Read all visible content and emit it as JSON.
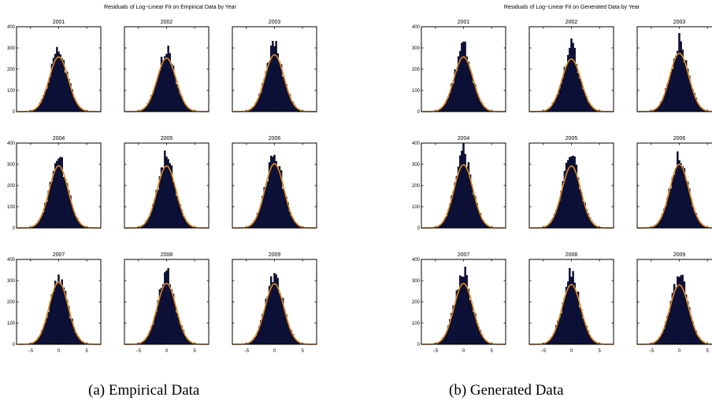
{
  "figure": {
    "caption_a": "(a)  Empirical Data",
    "caption_b": "(b)  Generated Data"
  },
  "colors": {
    "bar": "#0d1240",
    "bar_edge": "#000000",
    "curve": "#e08a1e",
    "axis": "#000000"
  },
  "chart_data": [
    {
      "type": "bar",
      "title": "Residuals of Log−Linear Fit on Empirical Data by Year",
      "xlim": [
        -7.5,
        7.5
      ],
      "ylim": [
        0,
        400
      ],
      "xticks": [
        -5,
        0,
        5
      ],
      "yticks": [
        0,
        100,
        200,
        300,
        400
      ],
      "grid": false,
      "bin_width": 0.3,
      "fit_sigma": 1.7,
      "panels": [
        {
          "year": "2001",
          "fit_peak": 258,
          "hist_peak": 300
        },
        {
          "year": "2002",
          "fit_peak": 252,
          "hist_peak": 285
        },
        {
          "year": "2003",
          "fit_peak": 268,
          "hist_peak": 320
        },
        {
          "year": "2004",
          "fit_peak": 293,
          "hist_peak": 335
        },
        {
          "year": "2005",
          "fit_peak": 292,
          "hist_peak": 340
        },
        {
          "year": "2006",
          "fit_peak": 303,
          "hist_peak": 345
        },
        {
          "year": "2007",
          "fit_peak": 294,
          "hist_peak": 325
        },
        {
          "year": "2008",
          "fit_peak": 287,
          "hist_peak": 340
        },
        {
          "year": "2009",
          "fit_peak": 285,
          "hist_peak": 325
        }
      ]
    },
    {
      "type": "bar",
      "title": "Residuals of Log−Linear Fit on Generated Data by Year",
      "xlim": [
        -7.5,
        7.5
      ],
      "ylim": [
        0,
        400
      ],
      "xticks": [
        -5,
        0,
        5
      ],
      "yticks": [
        0,
        100,
        200,
        300,
        400
      ],
      "grid": false,
      "bin_width": 0.3,
      "fit_sigma": 1.7,
      "panels": [
        {
          "year": "2001",
          "fit_peak": 258,
          "hist_peak": 305
        },
        {
          "year": "2002",
          "fit_peak": 248,
          "hist_peak": 315
        },
        {
          "year": "2003",
          "fit_peak": 275,
          "hist_peak": 335
        },
        {
          "year": "2004",
          "fit_peak": 298,
          "hist_peak": 370
        },
        {
          "year": "2005",
          "fit_peak": 292,
          "hist_peak": 380
        },
        {
          "year": "2006",
          "fit_peak": 300,
          "hist_peak": 355
        },
        {
          "year": "2007",
          "fit_peak": 287,
          "hist_peak": 350
        },
        {
          "year": "2008",
          "fit_peak": 282,
          "hist_peak": 345
        },
        {
          "year": "2009",
          "fit_peak": 280,
          "hist_peak": 340
        }
      ]
    }
  ]
}
